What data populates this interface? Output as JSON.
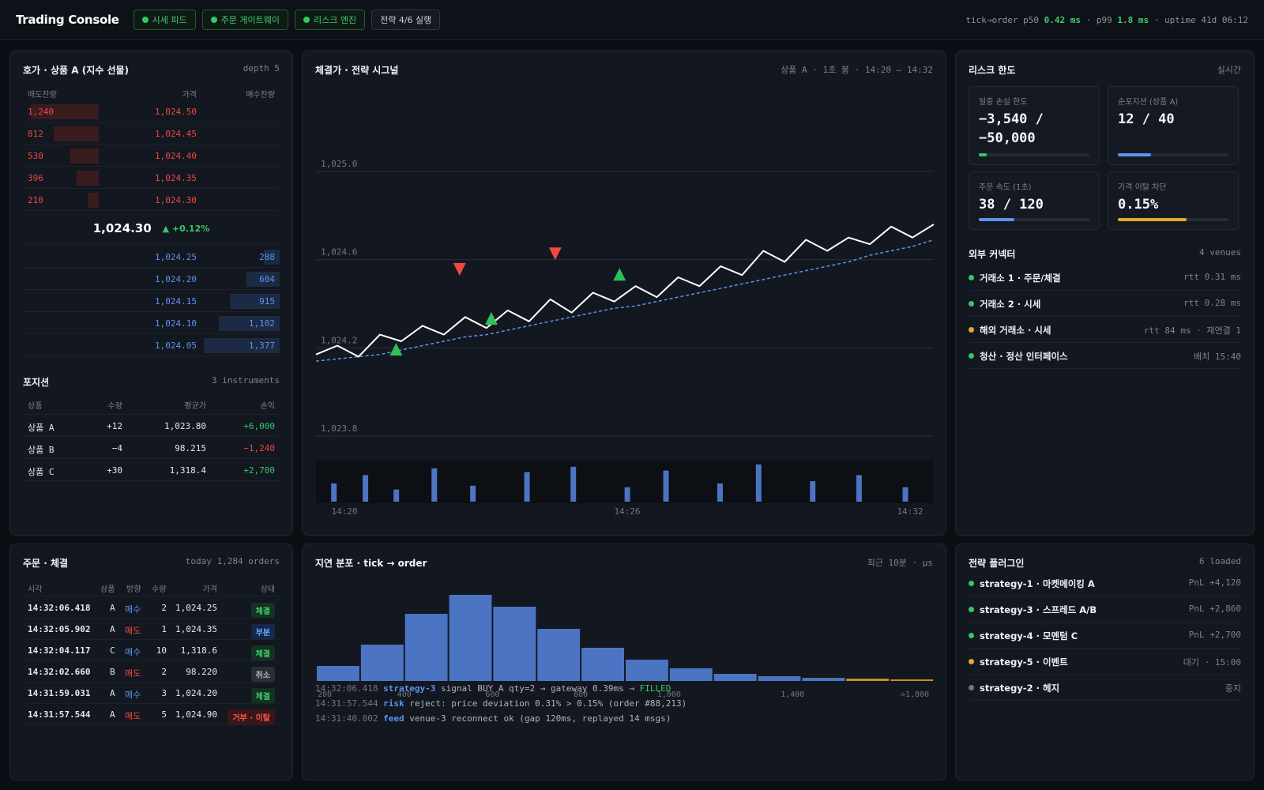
{
  "header": {
    "title": "Trading Console",
    "chips": [
      "시세 피드",
      "주문 게이트웨이",
      "리스크 엔진"
    ],
    "strategy_chip": "전략 4/6 실행",
    "latency_prefix": "tick→order p50",
    "p50": "0.42 ms",
    "p99_label": "· p99",
    "p99": "1.8 ms",
    "uptime": "· uptime 41d 06:12"
  },
  "orderbook": {
    "title": "호가 · 상품 A (지수 선물)",
    "meta": "depth 5",
    "col_ask": "매도잔량",
    "col_price": "가격",
    "col_bid": "매수잔량",
    "asks": [
      {
        "qty": "1,240",
        "price": "1,024.50",
        "share": 0.9
      },
      {
        "qty": "812",
        "price": "1,024.45",
        "share": 0.59
      },
      {
        "qty": "530",
        "price": "1,024.40",
        "share": 0.38
      },
      {
        "qty": "396",
        "price": "1,024.35",
        "share": 0.29
      },
      {
        "qty": "210",
        "price": "1,024.30",
        "share": 0.15
      }
    ],
    "last_price": "1,024.30",
    "change": "▲ +0.12%",
    "bids": [
      {
        "price": "1,024.25",
        "qty": "288",
        "share": 0.21
      },
      {
        "price": "1,024.20",
        "qty": "604",
        "share": 0.44
      },
      {
        "price": "1,024.15",
        "qty": "915",
        "share": 0.66
      },
      {
        "price": "1,024.10",
        "qty": "1,102",
        "share": 0.8
      },
      {
        "price": "1,024.05",
        "qty": "1,377",
        "share": 1.0
      }
    ]
  },
  "positions": {
    "title": "포지션",
    "meta": "3 instruments",
    "cols": [
      "상품",
      "수량",
      "평균가",
      "손익"
    ],
    "rows": [
      {
        "name": "상품 A",
        "qty": "+12",
        "avg": "1,023.80",
        "pnl": "+6,000",
        "pnl_color": "#37c668"
      },
      {
        "name": "상품 B",
        "qty": "−4",
        "avg": "98.215",
        "pnl": "−1,240",
        "pnl_color": "#f0493e"
      },
      {
        "name": "상품 C",
        "qty": "+30",
        "avg": "1,318.4",
        "pnl": "+2,700",
        "pnl_color": "#37c668"
      }
    ]
  },
  "chart_panel": {
    "title": "체결가 · 전략 시그널",
    "meta": "상품 A · 1초 봉 · 14:20 – 14:32"
  },
  "chart_data": [
    {
      "type": "line",
      "title": "체결가 · 전략 시그널",
      "ylim": [
        1023.8,
        1025.0
      ],
      "yticks": [
        "1,025.0",
        "1,024.6",
        "1,024.2",
        "1,023.8"
      ],
      "xticks": [
        "14:20",
        "14:26",
        "14:32"
      ],
      "series": [
        {
          "values": [
            1024.17,
            1024.21,
            1024.16,
            1024.26,
            1024.23,
            1024.3,
            1024.26,
            1024.34,
            1024.29,
            1024.37,
            1024.32,
            1024.42,
            1024.36,
            1024.45,
            1024.41,
            1024.48,
            1024.43,
            1024.52,
            1024.48,
            1024.57,
            1024.53,
            1024.64,
            1024.59,
            1024.69,
            1024.64,
            1024.7,
            1024.67,
            1024.75,
            1024.7,
            1024.76
          ]
        },
        {
          "values": [
            1024.14,
            1024.15,
            1024.16,
            1024.17,
            1024.19,
            1024.21,
            1024.23,
            1024.25,
            1024.26,
            1024.28,
            1024.3,
            1024.32,
            1024.34,
            1024.36,
            1024.38,
            1024.39,
            1024.41,
            1024.43,
            1024.45,
            1024.47,
            1024.49,
            1024.51,
            1024.53,
            1024.55,
            1024.57,
            1024.59,
            1024.62,
            1024.64,
            1024.66,
            1024.69
          ]
        }
      ],
      "signals": [
        {
          "type": "buy",
          "x": 3.76,
          "y": 1024.19
        },
        {
          "type": "sell",
          "x": 6.74,
          "y": 1024.56
        },
        {
          "type": "buy",
          "x": 8.23,
          "y": 1024.33
        },
        {
          "type": "sell",
          "x": 11.23,
          "y": 1024.63
        },
        {
          "type": "buy",
          "x": 14.25,
          "y": 1024.53
        }
      ],
      "volume": {
        "x": [
          0.58,
          1.6,
          2.6,
          3.83,
          5.08,
          6.83,
          8.33,
          10.08,
          11.33,
          13.08,
          14.33,
          16.08,
          17.58,
          19.08
        ],
        "values": [
          0.48,
          0.7,
          0.32,
          0.88,
          0.42,
          0.78,
          0.92,
          0.38,
          0.82,
          0.48,
          0.98,
          0.54,
          0.7,
          0.38
        ]
      }
    },
    {
      "type": "bar",
      "title": "지연 분포 · tick → order",
      "values": [
        19,
        46,
        85,
        109,
        94,
        66,
        42,
        27,
        16,
        9,
        6,
        4,
        3,
        2
      ],
      "highlight_from": 12,
      "xticks": [
        "200",
        "400",
        "600",
        "800",
        "1,000",
        "1,400",
        ">1,800"
      ]
    }
  ],
  "risk": {
    "title": "리스크 한도",
    "meta": "실시간",
    "cards": [
      {
        "label": "일중 손실 한도",
        "value": "−3,540 / −50,000",
        "level": 0.07,
        "color": "#37c668"
      },
      {
        "label": "순포지션 (상품 A)",
        "value": "12 / 40",
        "level": 0.3,
        "color": "#5b93f0"
      },
      {
        "label": "주문 속도 (1초)",
        "value": "38 / 120",
        "level": 0.32,
        "color": "#5b93f0"
      },
      {
        "label": "가격 이탈 차단",
        "value": "0.15%",
        "level": 0.62,
        "color": "#e4a82c"
      }
    ]
  },
  "connectors": {
    "title": "외부 커넥터",
    "meta": "4 venues",
    "items": [
      {
        "name": "거래소 1 · 주문/체결",
        "detail": "rtt 0.31 ms",
        "status_color": "#37c668"
      },
      {
        "name": "거래소 2 · 시세",
        "detail": "rtt 0.28 ms",
        "status_color": "#37c668"
      },
      {
        "name": "해외 거래소 · 시세",
        "detail": "rtt 84 ms · 재연결 1",
        "status_color": "#e4a82c"
      },
      {
        "name": "청산 · 정산 인터페이스",
        "detail": "배치 15:40",
        "status_color": "#37c668"
      }
    ]
  },
  "orders": {
    "title": "주문 · 체결",
    "meta": "today 1,284 orders",
    "cols": [
      "시각",
      "상품",
      "방향",
      "수량",
      "가격",
      "상태"
    ],
    "rows": [
      {
        "time": "14:32:06.418",
        "sym": "A",
        "side": "매수",
        "side_color": "#5b93f0",
        "qty": "2",
        "price": "1,024.25",
        "status": "체결",
        "status_class": "b-fill"
      },
      {
        "time": "14:32:05.902",
        "sym": "A",
        "side": "매도",
        "side_color": "#f0493e",
        "qty": "1",
        "price": "1,024.35",
        "status": "부분",
        "status_class": "b-part"
      },
      {
        "time": "14:32:04.117",
        "sym": "C",
        "side": "매수",
        "side_color": "#5b93f0",
        "qty": "10",
        "price": "1,318.6",
        "status": "체결",
        "status_class": "b-fill"
      },
      {
        "time": "14:32:02.660",
        "sym": "B",
        "side": "매도",
        "side_color": "#f0493e",
        "qty": "2",
        "price": "98.220",
        "status": "취소",
        "status_class": "b-cancel"
      },
      {
        "time": "14:31:59.031",
        "sym": "A",
        "side": "매수",
        "side_color": "#5b93f0",
        "qty": "3",
        "price": "1,024.20",
        "status": "체결",
        "status_class": "b-fill"
      },
      {
        "time": "14:31:57.544",
        "sym": "A",
        "side": "매도",
        "side_color": "#f0493e",
        "qty": "5",
        "price": "1,024.90",
        "status": "거부 · 이탈",
        "status_class": "b-rej"
      }
    ]
  },
  "latency": {
    "title": "지연 분포 · tick → order",
    "meta": "최근 10분 · μs",
    "logs": [
      {
        "ts": "14:32:06.418",
        "src": "strategy-3",
        "msg": " signal BUY A qty=2 → gateway 0.39ms → ",
        "tail": "FILLED"
      },
      {
        "ts": "14:31:57.544",
        "src": "risk",
        "msg": " reject: price deviation 0.31% > 0.15% (order #88,213)",
        "tail": ""
      },
      {
        "ts": "14:31:40.002",
        "src": "feed",
        "msg": " venue-3 reconnect ok (gap 120ms, replayed 14 msgs)",
        "tail": ""
      }
    ]
  },
  "plugins": {
    "title": "전략 플러그인",
    "meta": "6 loaded",
    "items": [
      {
        "name": "strategy-1 · 마켓메이킹 A",
        "detail": "PnL +4,120",
        "status_color": "#37c668"
      },
      {
        "name": "strategy-3 · 스프레드 A/B",
        "detail": "PnL +2,860",
        "status_color": "#37c668"
      },
      {
        "name": "strategy-4 · 모멘텀 C",
        "detail": "PnL +2,700",
        "status_color": "#37c668"
      },
      {
        "name": "strategy-5 · 이벤트",
        "detail": "대기 · 15:00",
        "status_color": "#e4a82c"
      },
      {
        "name": "strategy-2 · 헤지",
        "detail": "중지",
        "status_color": "#6f7782"
      }
    ]
  }
}
